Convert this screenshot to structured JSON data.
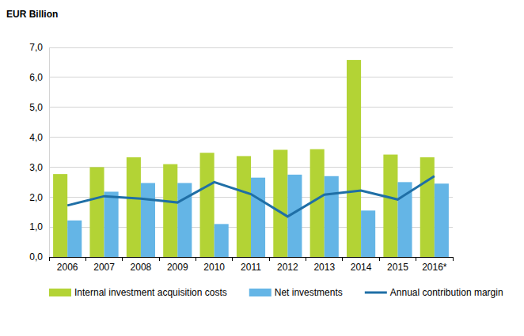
{
  "chart_data": {
    "type": "bar",
    "y_label": "EUR Billion",
    "categories": [
      "2006",
      "2007",
      "2008",
      "2009",
      "2010",
      "2011",
      "2012",
      "2013",
      "2014",
      "2015",
      "2016*"
    ],
    "series": [
      {
        "name": "Internal investment acquisition costs",
        "type": "bar",
        "color": "#b3d335",
        "values": [
          2.77,
          3.0,
          3.33,
          3.1,
          3.48,
          3.37,
          3.58,
          3.6,
          6.58,
          3.42,
          3.33
        ]
      },
      {
        "name": "Net investments",
        "type": "bar",
        "color": "#64b5e6",
        "values": [
          1.22,
          2.18,
          2.47,
          2.47,
          1.1,
          2.65,
          2.75,
          2.7,
          1.55,
          2.5,
          2.45
        ]
      },
      {
        "name": "Annual contribution margin",
        "type": "line",
        "color": "#1f6fa6",
        "line_style": "solid",
        "values": [
          1.72,
          2.03,
          1.95,
          1.82,
          2.5,
          2.1,
          1.35,
          2.08,
          2.22,
          1.92,
          2.7
        ]
      }
    ],
    "ylim": [
      0,
      7
    ],
    "yticks": [
      {
        "value": 0,
        "label": "0,0"
      },
      {
        "value": 1,
        "label": "1,0"
      },
      {
        "value": 2,
        "label": "2,0"
      },
      {
        "value": 3,
        "label": "3,0"
      },
      {
        "value": 4,
        "label": "4,0"
      },
      {
        "value": 5,
        "label": "5,0"
      },
      {
        "value": 6,
        "label": "6,0"
      },
      {
        "value": 7,
        "label": "7,0"
      }
    ],
    "grid": true,
    "legend": "bottom"
  }
}
